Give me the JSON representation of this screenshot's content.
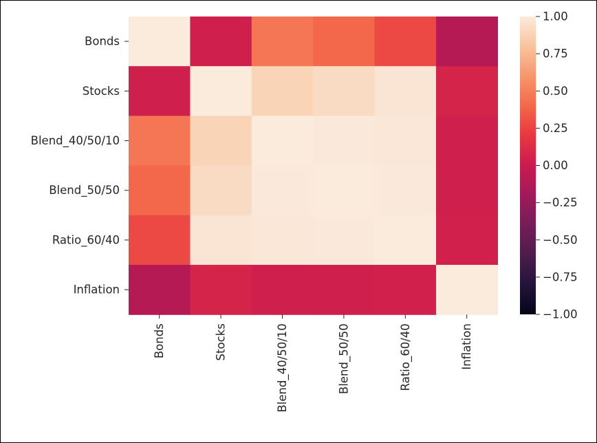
{
  "chart_data": {
    "type": "heatmap",
    "title": "",
    "xlabel": "",
    "ylabel": "",
    "rows": [
      "Bonds",
      "Stocks",
      "Blend_40/50/10",
      "Blend_50/50",
      "Ratio_60/40",
      "Inflation"
    ],
    "columns": [
      "Bonds",
      "Stocks",
      "Blend_40/50/10",
      "Blend_50/50",
      "Ratio_60/40",
      "Inflation"
    ],
    "values": [
      [
        1.0,
        0.03,
        0.46,
        0.4,
        0.27,
        -0.1
      ],
      [
        0.03,
        1.0,
        0.88,
        0.92,
        0.97,
        0.07
      ],
      [
        0.46,
        0.88,
        1.0,
        0.99,
        0.98,
        0.03
      ],
      [
        0.4,
        0.92,
        0.99,
        1.0,
        0.99,
        0.03
      ],
      [
        0.27,
        0.97,
        0.98,
        0.99,
        1.0,
        0.04
      ],
      [
        -0.1,
        0.07,
        0.03,
        0.03,
        0.04,
        1.0
      ]
    ],
    "vmin": -1.0,
    "vmax": 1.0,
    "colormap": "rocket",
    "colorbar": {
      "ticks": [
        1.0,
        0.75,
        0.5,
        0.25,
        0.0,
        -0.25,
        -0.5,
        -0.75,
        -1.0
      ],
      "tick_labels": [
        "1.00",
        "0.75",
        "0.50",
        "0.25",
        "0.00",
        "−0.25",
        "−0.50",
        "−0.75",
        "−1.00"
      ]
    }
  }
}
